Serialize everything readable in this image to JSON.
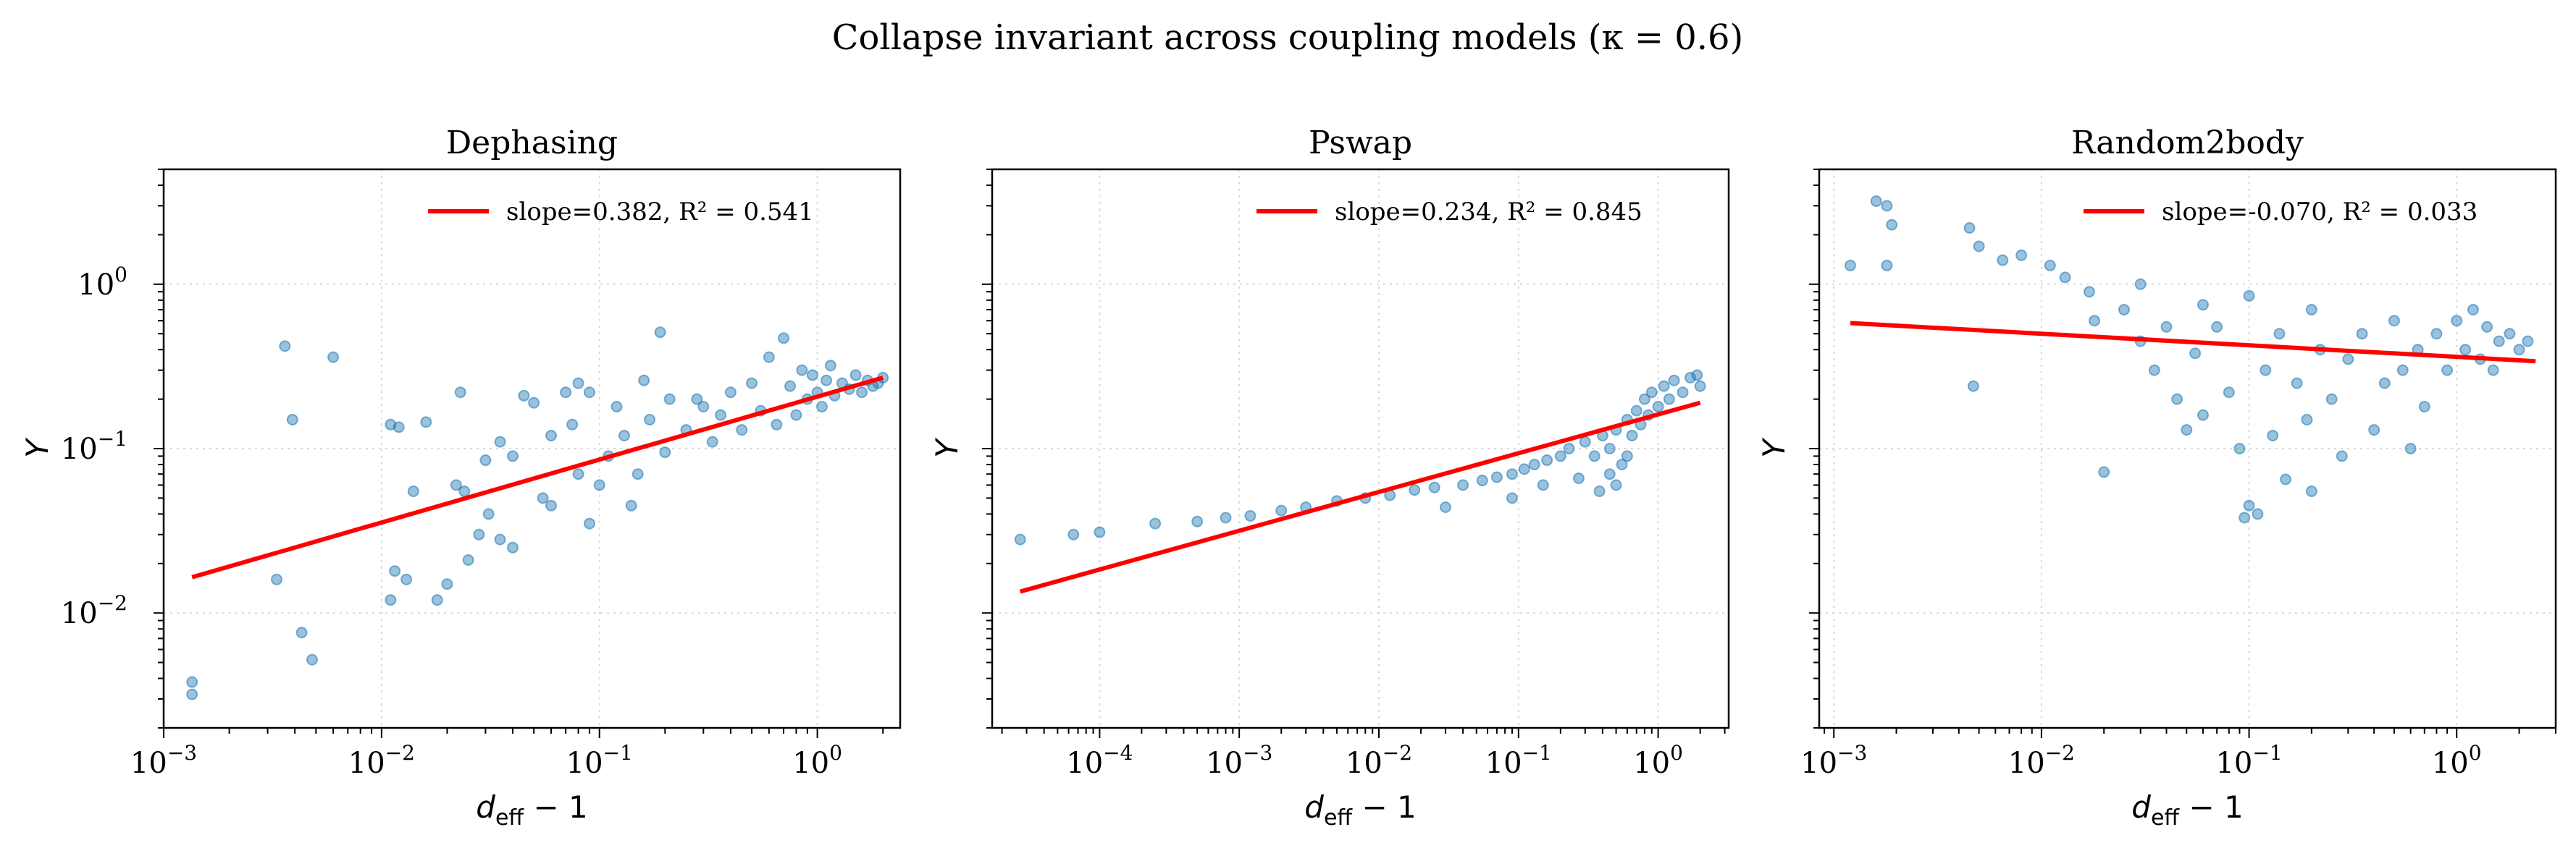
{
  "suptitle": "Collapse invariant across coupling models (κ = 0.6)",
  "colors": {
    "points": "#1f77b4",
    "fit": "#ff0000",
    "grid": "#d9d9d9"
  },
  "chart_data": [
    {
      "type": "scatter",
      "title": "Dephasing",
      "xlabel": "d_eff − 1",
      "ylabel": "Y",
      "xscale": "log",
      "yscale": "log",
      "xlim": [
        0.001,
        2.4
      ],
      "ylim": [
        0.002,
        5
      ],
      "xticks": [
        {
          "v": 0.001,
          "m": "10",
          "e": "−3"
        },
        {
          "v": 0.01,
          "m": "10",
          "e": "−2"
        },
        {
          "v": 0.1,
          "m": "10",
          "e": "−1"
        },
        {
          "v": 1,
          "m": "10",
          "e": "0"
        }
      ],
      "yticks": [
        {
          "v": 0.01,
          "m": "10",
          "e": "−2"
        },
        {
          "v": 0.1,
          "m": "10",
          "e": "−1"
        },
        {
          "v": 1,
          "m": "10",
          "e": "0"
        }
      ],
      "fit": {
        "label": "slope=0.382, R² = 0.541",
        "x": [
          0.00135,
          2.0
        ],
        "y": [
          0.0165,
          0.27
        ]
      },
      "legend": "top-right",
      "grid": true,
      "points": [
        [
          0.00135,
          0.0032
        ],
        [
          0.00135,
          0.0038
        ],
        [
          0.0036,
          0.42
        ],
        [
          0.0039,
          0.15
        ],
        [
          0.0043,
          0.0076
        ],
        [
          0.0048,
          0.0052
        ],
        [
          0.006,
          0.36
        ],
        [
          0.0033,
          0.016
        ],
        [
          0.011,
          0.14
        ],
        [
          0.012,
          0.135
        ],
        [
          0.0115,
          0.018
        ],
        [
          0.013,
          0.016
        ],
        [
          0.011,
          0.012
        ],
        [
          0.014,
          0.055
        ],
        [
          0.016,
          0.145
        ],
        [
          0.018,
          0.012
        ],
        [
          0.02,
          0.015
        ],
        [
          0.022,
          0.06
        ],
        [
          0.023,
          0.22
        ],
        [
          0.025,
          0.021
        ],
        [
          0.028,
          0.03
        ],
        [
          0.031,
          0.04
        ],
        [
          0.035,
          0.028
        ],
        [
          0.04,
          0.025
        ],
        [
          0.045,
          0.21
        ],
        [
          0.05,
          0.19
        ],
        [
          0.055,
          0.05
        ],
        [
          0.06,
          0.045
        ],
        [
          0.07,
          0.22
        ],
        [
          0.08,
          0.07
        ],
        [
          0.09,
          0.035
        ],
        [
          0.1,
          0.06
        ],
        [
          0.11,
          0.09
        ],
        [
          0.12,
          0.18
        ],
        [
          0.13,
          0.12
        ],
        [
          0.15,
          0.07
        ],
        [
          0.17,
          0.15
        ],
        [
          0.19,
          0.51
        ],
        [
          0.2,
          0.095
        ],
        [
          0.21,
          0.2
        ],
        [
          0.25,
          0.13
        ],
        [
          0.28,
          0.2
        ],
        [
          0.3,
          0.18
        ],
        [
          0.33,
          0.11
        ],
        [
          0.36,
          0.16
        ],
        [
          0.4,
          0.22
        ],
        [
          0.45,
          0.13
        ],
        [
          0.5,
          0.25
        ],
        [
          0.55,
          0.17
        ],
        [
          0.6,
          0.36
        ],
        [
          0.65,
          0.14
        ],
        [
          0.7,
          0.47
        ],
        [
          0.75,
          0.24
        ],
        [
          0.8,
          0.16
        ],
        [
          0.85,
          0.3
        ],
        [
          0.9,
          0.2
        ],
        [
          0.95,
          0.28
        ],
        [
          1.0,
          0.22
        ],
        [
          1.05,
          0.18
        ],
        [
          1.1,
          0.26
        ],
        [
          1.15,
          0.32
        ],
        [
          1.2,
          0.21
        ],
        [
          1.3,
          0.25
        ],
        [
          1.4,
          0.23
        ],
        [
          1.5,
          0.28
        ],
        [
          1.6,
          0.22
        ],
        [
          1.7,
          0.26
        ],
        [
          1.8,
          0.24
        ],
        [
          1.9,
          0.25
        ],
        [
          2.0,
          0.27
        ],
        [
          0.09,
          0.22
        ],
        [
          0.06,
          0.12
        ],
        [
          0.035,
          0.11
        ],
        [
          0.03,
          0.085
        ],
        [
          0.04,
          0.09
        ],
        [
          0.075,
          0.14
        ],
        [
          0.14,
          0.045
        ],
        [
          0.024,
          0.055
        ],
        [
          0.08,
          0.25
        ],
        [
          0.16,
          0.26
        ]
      ]
    },
    {
      "type": "scatter",
      "title": "Pswap",
      "xlabel": "d_eff − 1",
      "ylabel": "Y",
      "xscale": "log",
      "yscale": "log",
      "xlim": [
        1.7e-05,
        3.2
      ],
      "ylim": [
        0.002,
        5
      ],
      "xticks": [
        {
          "v": 0.0001,
          "m": "10",
          "e": "−4"
        },
        {
          "v": 0.001,
          "m": "10",
          "e": "−3"
        },
        {
          "v": 0.01,
          "m": "10",
          "e": "−2"
        },
        {
          "v": 0.1,
          "m": "10",
          "e": "−1"
        },
        {
          "v": 1,
          "m": "10",
          "e": "0"
        }
      ],
      "yticks": [],
      "fit": {
        "label": "slope=0.234, R² = 0.845",
        "x": [
          2.7e-05,
          2.0
        ],
        "y": [
          0.0135,
          0.19
        ]
      },
      "legend": "top-right",
      "grid": true,
      "points": [
        [
          2.7e-05,
          0.028
        ],
        [
          6.5e-05,
          0.03
        ],
        [
          0.0001,
          0.031
        ],
        [
          0.00025,
          0.035
        ],
        [
          0.0005,
          0.036
        ],
        [
          0.0008,
          0.038
        ],
        [
          0.0012,
          0.039
        ],
        [
          0.002,
          0.042
        ],
        [
          0.003,
          0.044
        ],
        [
          0.005,
          0.048
        ],
        [
          0.008,
          0.05
        ],
        [
          0.012,
          0.052
        ],
        [
          0.018,
          0.056
        ],
        [
          0.025,
          0.058
        ],
        [
          0.03,
          0.044
        ],
        [
          0.04,
          0.06
        ],
        [
          0.055,
          0.064
        ],
        [
          0.07,
          0.067
        ],
        [
          0.09,
          0.07
        ],
        [
          0.11,
          0.075
        ],
        [
          0.13,
          0.08
        ],
        [
          0.16,
          0.085
        ],
        [
          0.2,
          0.09
        ],
        [
          0.23,
          0.1
        ],
        [
          0.27,
          0.066
        ],
        [
          0.3,
          0.11
        ],
        [
          0.35,
          0.09
        ],
        [
          0.4,
          0.12
        ],
        [
          0.45,
          0.1
        ],
        [
          0.5,
          0.13
        ],
        [
          0.55,
          0.08
        ],
        [
          0.6,
          0.15
        ],
        [
          0.65,
          0.12
        ],
        [
          0.7,
          0.17
        ],
        [
          0.75,
          0.14
        ],
        [
          0.8,
          0.2
        ],
        [
          0.85,
          0.16
        ],
        [
          0.9,
          0.22
        ],
        [
          1.0,
          0.18
        ],
        [
          1.1,
          0.24
        ],
        [
          1.2,
          0.2
        ],
        [
          1.3,
          0.26
        ],
        [
          1.5,
          0.22
        ],
        [
          1.7,
          0.27
        ],
        [
          1.9,
          0.28
        ],
        [
          2.0,
          0.24
        ],
        [
          0.5,
          0.06
        ],
        [
          0.45,
          0.07
        ],
        [
          0.38,
          0.055
        ],
        [
          0.6,
          0.09
        ],
        [
          0.09,
          0.05
        ],
        [
          0.15,
          0.06
        ]
      ]
    },
    {
      "type": "scatter",
      "title": "Random2body",
      "xlabel": "d_eff − 1",
      "ylabel": "Y",
      "xscale": "log",
      "yscale": "log",
      "xlim": [
        0.00085,
        3.0
      ],
      "ylim": [
        0.002,
        5
      ],
      "xticks": [
        {
          "v": 0.001,
          "m": "10",
          "e": "−3"
        },
        {
          "v": 0.01,
          "m": "10",
          "e": "−2"
        },
        {
          "v": 0.1,
          "m": "10",
          "e": "−1"
        },
        {
          "v": 1,
          "m": "10",
          "e": "0"
        }
      ],
      "yticks": [],
      "fit": {
        "label": "slope=-0.070, R² = 0.033",
        "x": [
          0.0012,
          2.4
        ],
        "y": [
          0.58,
          0.34
        ]
      },
      "legend": "top-right",
      "grid": true,
      "points": [
        [
          0.0012,
          1.3
        ],
        [
          0.0016,
          3.2
        ],
        [
          0.0018,
          3.0
        ],
        [
          0.0019,
          2.3
        ],
        [
          0.0018,
          1.3
        ],
        [
          0.0045,
          2.2
        ],
        [
          0.005,
          1.7
        ],
        [
          0.0047,
          0.24
        ],
        [
          0.0065,
          1.4
        ],
        [
          0.008,
          1.5
        ],
        [
          0.011,
          1.3
        ],
        [
          0.013,
          1.1
        ],
        [
          0.017,
          0.9
        ],
        [
          0.02,
          0.072
        ],
        [
          0.025,
          0.7
        ],
        [
          0.03,
          0.45
        ],
        [
          0.035,
          0.3
        ],
        [
          0.04,
          0.55
        ],
        [
          0.045,
          0.2
        ],
        [
          0.05,
          0.13
        ],
        [
          0.055,
          0.38
        ],
        [
          0.06,
          0.16
        ],
        [
          0.07,
          0.55
        ],
        [
          0.08,
          0.22
        ],
        [
          0.09,
          0.1
        ],
        [
          0.095,
          0.038
        ],
        [
          0.1,
          0.045
        ],
        [
          0.11,
          0.04
        ],
        [
          0.12,
          0.3
        ],
        [
          0.13,
          0.12
        ],
        [
          0.14,
          0.5
        ],
        [
          0.15,
          0.065
        ],
        [
          0.17,
          0.25
        ],
        [
          0.19,
          0.15
        ],
        [
          0.2,
          0.055
        ],
        [
          0.22,
          0.4
        ],
        [
          0.25,
          0.2
        ],
        [
          0.28,
          0.09
        ],
        [
          0.3,
          0.35
        ],
        [
          0.35,
          0.5
        ],
        [
          0.4,
          0.13
        ],
        [
          0.45,
          0.25
        ],
        [
          0.5,
          0.6
        ],
        [
          0.55,
          0.3
        ],
        [
          0.6,
          0.1
        ],
        [
          0.65,
          0.4
        ],
        [
          0.7,
          0.18
        ],
        [
          0.8,
          0.5
        ],
        [
          0.9,
          0.3
        ],
        [
          1.0,
          0.6
        ],
        [
          1.1,
          0.4
        ],
        [
          1.2,
          0.7
        ],
        [
          1.3,
          0.35
        ],
        [
          1.4,
          0.55
        ],
        [
          1.5,
          0.3
        ],
        [
          1.6,
          0.45
        ],
        [
          1.8,
          0.5
        ],
        [
          2.0,
          0.4
        ],
        [
          2.2,
          0.45
        ],
        [
          0.06,
          0.75
        ],
        [
          0.03,
          1.0
        ],
        [
          0.1,
          0.85
        ],
        [
          0.2,
          0.7
        ],
        [
          0.018,
          0.6
        ]
      ]
    }
  ]
}
